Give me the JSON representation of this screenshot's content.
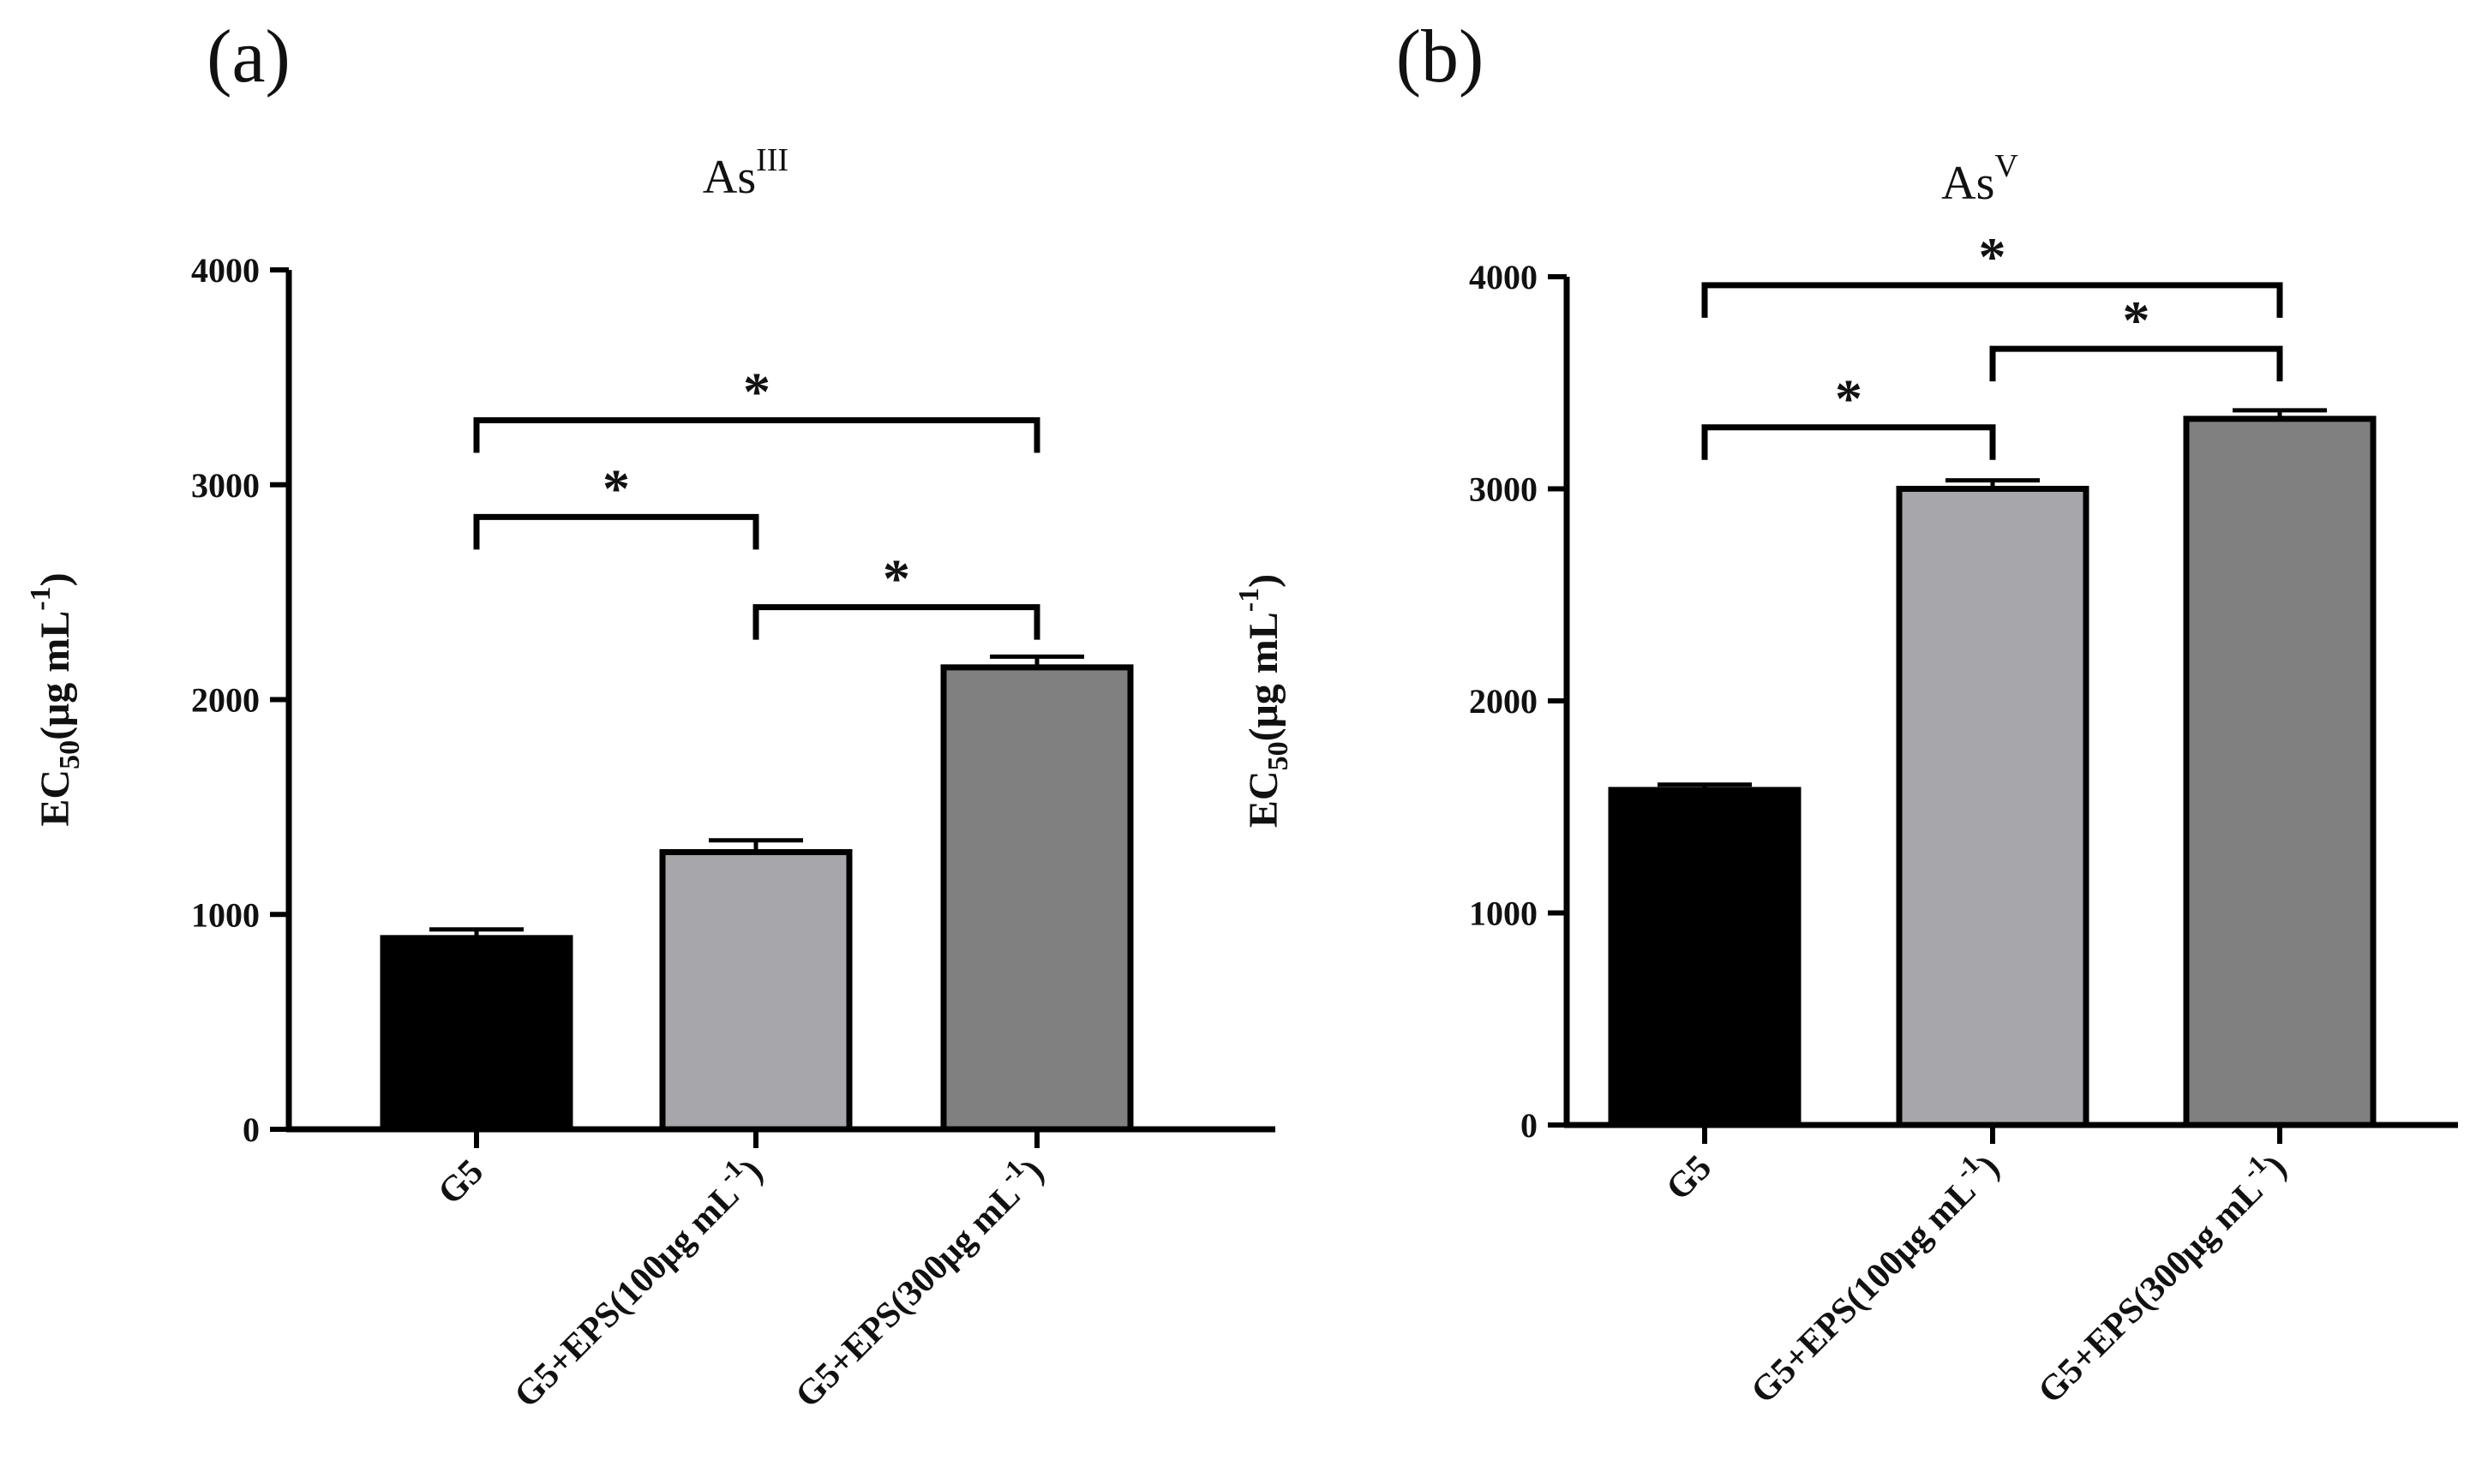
{
  "chart_data": [
    {
      "type": "bar",
      "panel_label": "(a)",
      "title": {
        "main": "As",
        "sup": "III"
      },
      "ylabel": {
        "main": "EC",
        "sub": "50",
        "unit": "(μg mL",
        "sup": "-1",
        "close": ")"
      },
      "ylim": [
        0,
        4000
      ],
      "yticks": [
        "0",
        "1000",
        "2000",
        "3000",
        "4000"
      ],
      "categories": [
        {
          "main": "G5",
          "sup": "",
          "close": ""
        },
        {
          "main": "G5+EPS(100μg mL",
          "sup": "-1",
          "close": ")"
        },
        {
          "main": "G5+EPS(300μg mL",
          "sup": "-1",
          "close": ")"
        }
      ],
      "values": [
        890,
        1290,
        2150
      ],
      "errors": [
        40,
        55,
        50
      ],
      "bar_colors": [
        "#000000",
        "#a6a6ab",
        "#808080"
      ],
      "significance": [
        {
          "from": 0,
          "to": 2,
          "y": 3300,
          "label": "*"
        },
        {
          "from": 0,
          "to": 1,
          "y": 2850,
          "label": "*"
        },
        {
          "from": 1,
          "to": 2,
          "y": 2430,
          "label": "*"
        }
      ]
    },
    {
      "type": "bar",
      "panel_label": "(b)",
      "title": {
        "main": "As",
        "sup": "V"
      },
      "ylabel": {
        "main": "EC",
        "sub": "50",
        "unit": "(μg mL",
        "sup": "-1",
        "close": ")"
      },
      "ylim": [
        0,
        4000
      ],
      "yticks": [
        "0",
        "1000",
        "2000",
        "3000",
        "4000"
      ],
      "categories": [
        {
          "main": "G5",
          "sup": "",
          "close": ""
        },
        {
          "main": "G5+EPS(100μg mL",
          "sup": "-1",
          "close": ")"
        },
        {
          "main": "G5+EPS(300μg mL",
          "sup": "-1",
          "close": ")"
        }
      ],
      "values": [
        1580,
        3000,
        3330
      ],
      "errors": [
        25,
        40,
        40
      ],
      "bar_colors": [
        "#000000",
        "#a6a6ab",
        "#808080"
      ],
      "significance": [
        {
          "from": 0,
          "to": 2,
          "y": 3960,
          "label": "*"
        },
        {
          "from": 1,
          "to": 2,
          "y": 3660,
          "label": "*"
        },
        {
          "from": 0,
          "to": 1,
          "y": 3290,
          "label": "*"
        }
      ]
    }
  ]
}
